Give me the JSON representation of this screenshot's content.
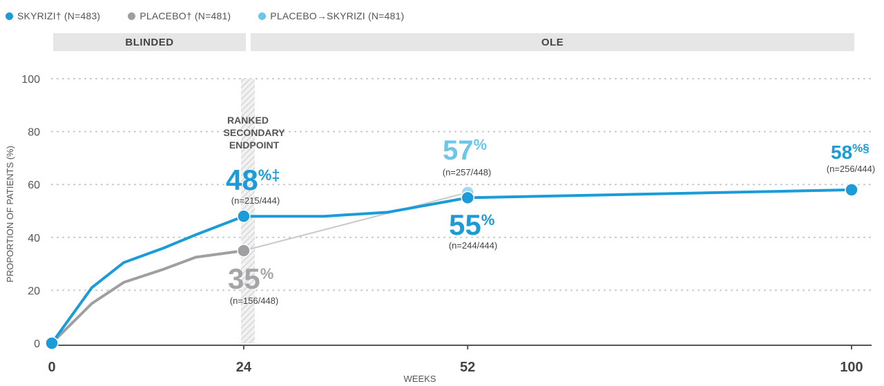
{
  "legend": [
    {
      "label": "SKYRIZI† (N=483)",
      "color": "#1b9bd7"
    },
    {
      "label": "PLACEBO† (N=481)",
      "color": "#9d9fa2"
    },
    {
      "label": "PLACEBO→SKYRIZI (N=481)",
      "color": "#6cc6ea"
    }
  ],
  "bands": {
    "blinded": "BLINDED",
    "ole": "OLE"
  },
  "endpoint_note": [
    "RANKED",
    "SECONDARY",
    "ENDPOINT"
  ],
  "chart_data": {
    "type": "line",
    "xlabel": "WEEKS",
    "ylabel": "PROPORTION OF PATIENTS (%)",
    "xlim": [
      0,
      100
    ],
    "ylim": [
      0,
      100
    ],
    "yticks": [
      0,
      20,
      40,
      60,
      80,
      100
    ],
    "xticks": [
      0,
      24,
      52,
      100
    ],
    "series": [
      {
        "name": "SKYRIZI",
        "color": "#1b9bd7",
        "x": [
          0,
          5,
          9,
          14,
          18,
          24,
          34,
          42,
          52,
          100
        ],
        "y": [
          0,
          21,
          30.5,
          36,
          41,
          48,
          48,
          49.5,
          55,
          58
        ]
      },
      {
        "name": "PLACEBO",
        "color": "#9d9fa2",
        "x": [
          0,
          5,
          9,
          14,
          18,
          24
        ],
        "y": [
          0,
          15,
          23,
          28,
          32.5,
          35
        ]
      },
      {
        "name": "PLACEBO→SKYRIZI",
        "color": "#c8c9cb",
        "x": [
          24,
          52
        ],
        "y": [
          35,
          57
        ]
      }
    ],
    "markers": [
      {
        "series": "SKYRIZI",
        "x": 0,
        "y": 0,
        "color": "#1b9bd7"
      },
      {
        "series": "PLACEBO",
        "x": 24,
        "y": 35,
        "color": "#9d9fa2"
      },
      {
        "series": "SKYRIZI",
        "x": 24,
        "y": 48,
        "color": "#1b9bd7"
      },
      {
        "series": "PLACEBO→SKYRIZI",
        "x": 52,
        "y": 57,
        "color": "#9fd8f0"
      },
      {
        "series": "SKYRIZI",
        "x": 52,
        "y": 55,
        "color": "#1b9bd7"
      },
      {
        "series": "SKYRIZI",
        "x": 100,
        "y": 58,
        "color": "#1b9bd7"
      }
    ],
    "annotations": [
      {
        "value": "48",
        "suffix": "%‡",
        "n": "(n=215/444)",
        "color": "#1b9bd7"
      },
      {
        "value": "35",
        "suffix": "%",
        "n": "(n=156/448)",
        "color": "#a3a5a8"
      },
      {
        "value": "57",
        "suffix": "%",
        "n": "(n=257/448)",
        "color": "#6cc6ea"
      },
      {
        "value": "55",
        "suffix": "%",
        "n": "(n=244/444)",
        "color": "#1b9bd7"
      },
      {
        "value": "58",
        "suffix": "%§",
        "n": "(n=256/444)",
        "color": "#1b9bd7"
      }
    ]
  }
}
